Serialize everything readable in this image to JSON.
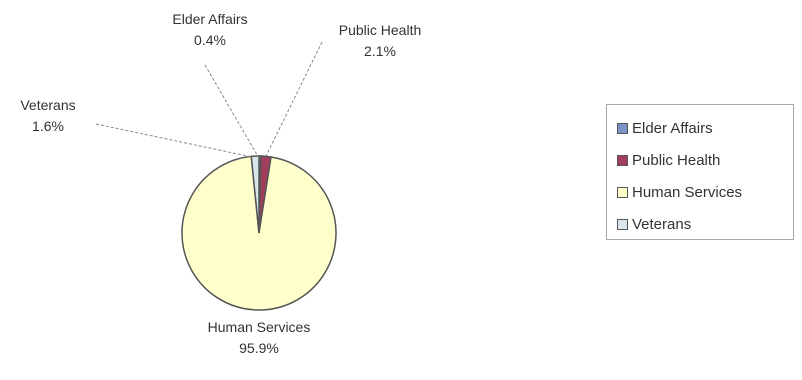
{
  "chart_data": {
    "type": "pie",
    "title": "",
    "slices": [
      {
        "label": "Elder Affairs",
        "value": 0.4,
        "value_label": "0.4%",
        "color": "#7b93c7"
      },
      {
        "label": "Public Health",
        "value": 2.1,
        "value_label": "2.1%",
        "color": "#a33d5c"
      },
      {
        "label": "Human Services",
        "value": 95.9,
        "value_label": "95.9%",
        "color": "#ffffcc"
      },
      {
        "label": "Veterans",
        "value": 1.6,
        "value_label": "1.6%",
        "color": "#d9e6ee"
      }
    ],
    "legend": {
      "placement": "right",
      "items": [
        "Elder Affairs",
        "Public Health",
        "Human Services",
        "Veterans"
      ]
    }
  }
}
